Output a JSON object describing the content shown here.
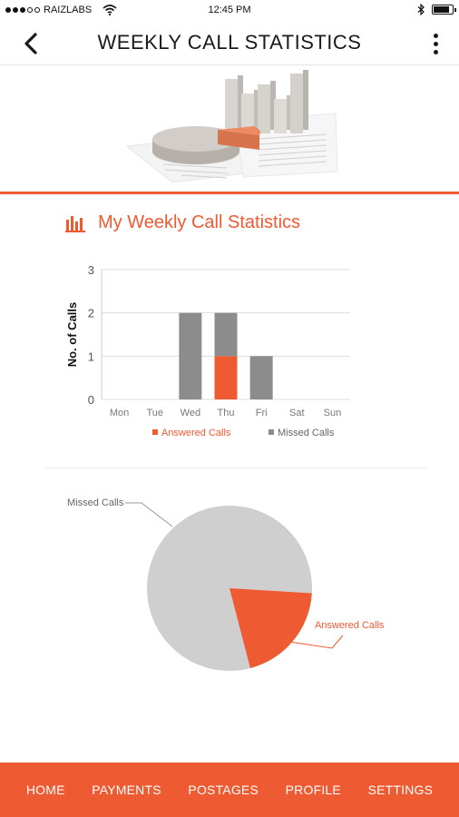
{
  "status_bar": {
    "carrier": "RAIZLABS",
    "time": "12:45 PM",
    "battery_level": 0.85
  },
  "header": {
    "title": "WEEKLY CALL STATISTICS"
  },
  "section": {
    "title": "My Weekly Call Statistics"
  },
  "colors": {
    "accent": "#ee5a32",
    "missed": "#8c8c8c",
    "missed_pie": "#cfcfcf",
    "grid": "#dddddd"
  },
  "chart_data": [
    {
      "type": "bar",
      "stacked": true,
      "ylabel": "No. of Calls",
      "ylim": [
        0,
        3
      ],
      "yticks": [
        0,
        1,
        2,
        3
      ],
      "categories": [
        "Mon",
        "Tue",
        "Wed",
        "Thu",
        "Fri",
        "Sat",
        "Sun"
      ],
      "series": [
        {
          "name": "Answered Calls",
          "values": [
            0,
            0,
            0,
            1,
            0,
            0,
            0
          ]
        },
        {
          "name": "Missed Calls",
          "values": [
            0,
            0,
            2,
            1,
            1,
            0,
            0
          ]
        }
      ],
      "grid": true,
      "legend": "bottom"
    },
    {
      "type": "pie",
      "slices": [
        {
          "name": "Missed Calls",
          "value": 4
        },
        {
          "name": "Answered Calls",
          "value": 1
        }
      ]
    }
  ],
  "nav": {
    "items": [
      "HOME",
      "PAYMENTS",
      "POSTAGES",
      "PROFILE",
      "SETTINGS"
    ]
  }
}
